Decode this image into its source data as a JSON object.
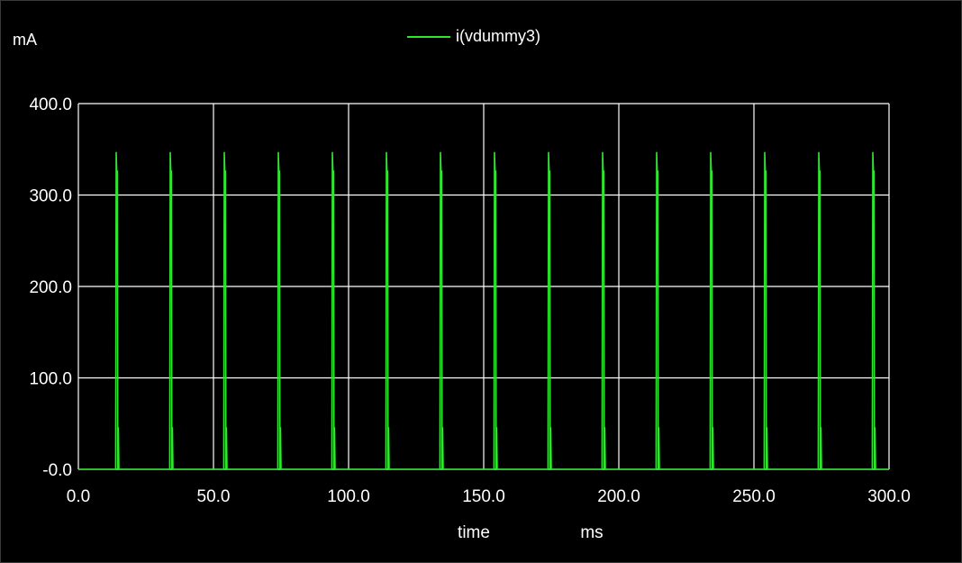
{
  "chart_data": {
    "type": "line",
    "ylabel_unit": "mA",
    "xlabel": "time",
    "xlabel_unit": "ms",
    "legend": [
      "i(vdummy3)"
    ],
    "xlim": [
      0,
      300
    ],
    "ylim": [
      0,
      400
    ],
    "x_ticks": [
      "0.0",
      "50.0",
      "100.0",
      "150.0",
      "200.0",
      "250.0",
      "300.0"
    ],
    "y_ticks": [
      "-0.0",
      "100.0",
      "200.0",
      "300.0",
      "400.0"
    ],
    "grid": true,
    "series": [
      {
        "name": "i(vdummy3)",
        "color": "#2ee62e",
        "baseline": 0,
        "pulse_times_ms": [
          14,
          34,
          54,
          74,
          94,
          114,
          134,
          154,
          174,
          194,
          214,
          234,
          254,
          274,
          294
        ],
        "pulse_peak": 347,
        "pulse_plateau": 326,
        "pulse_tail": 46
      }
    ]
  }
}
